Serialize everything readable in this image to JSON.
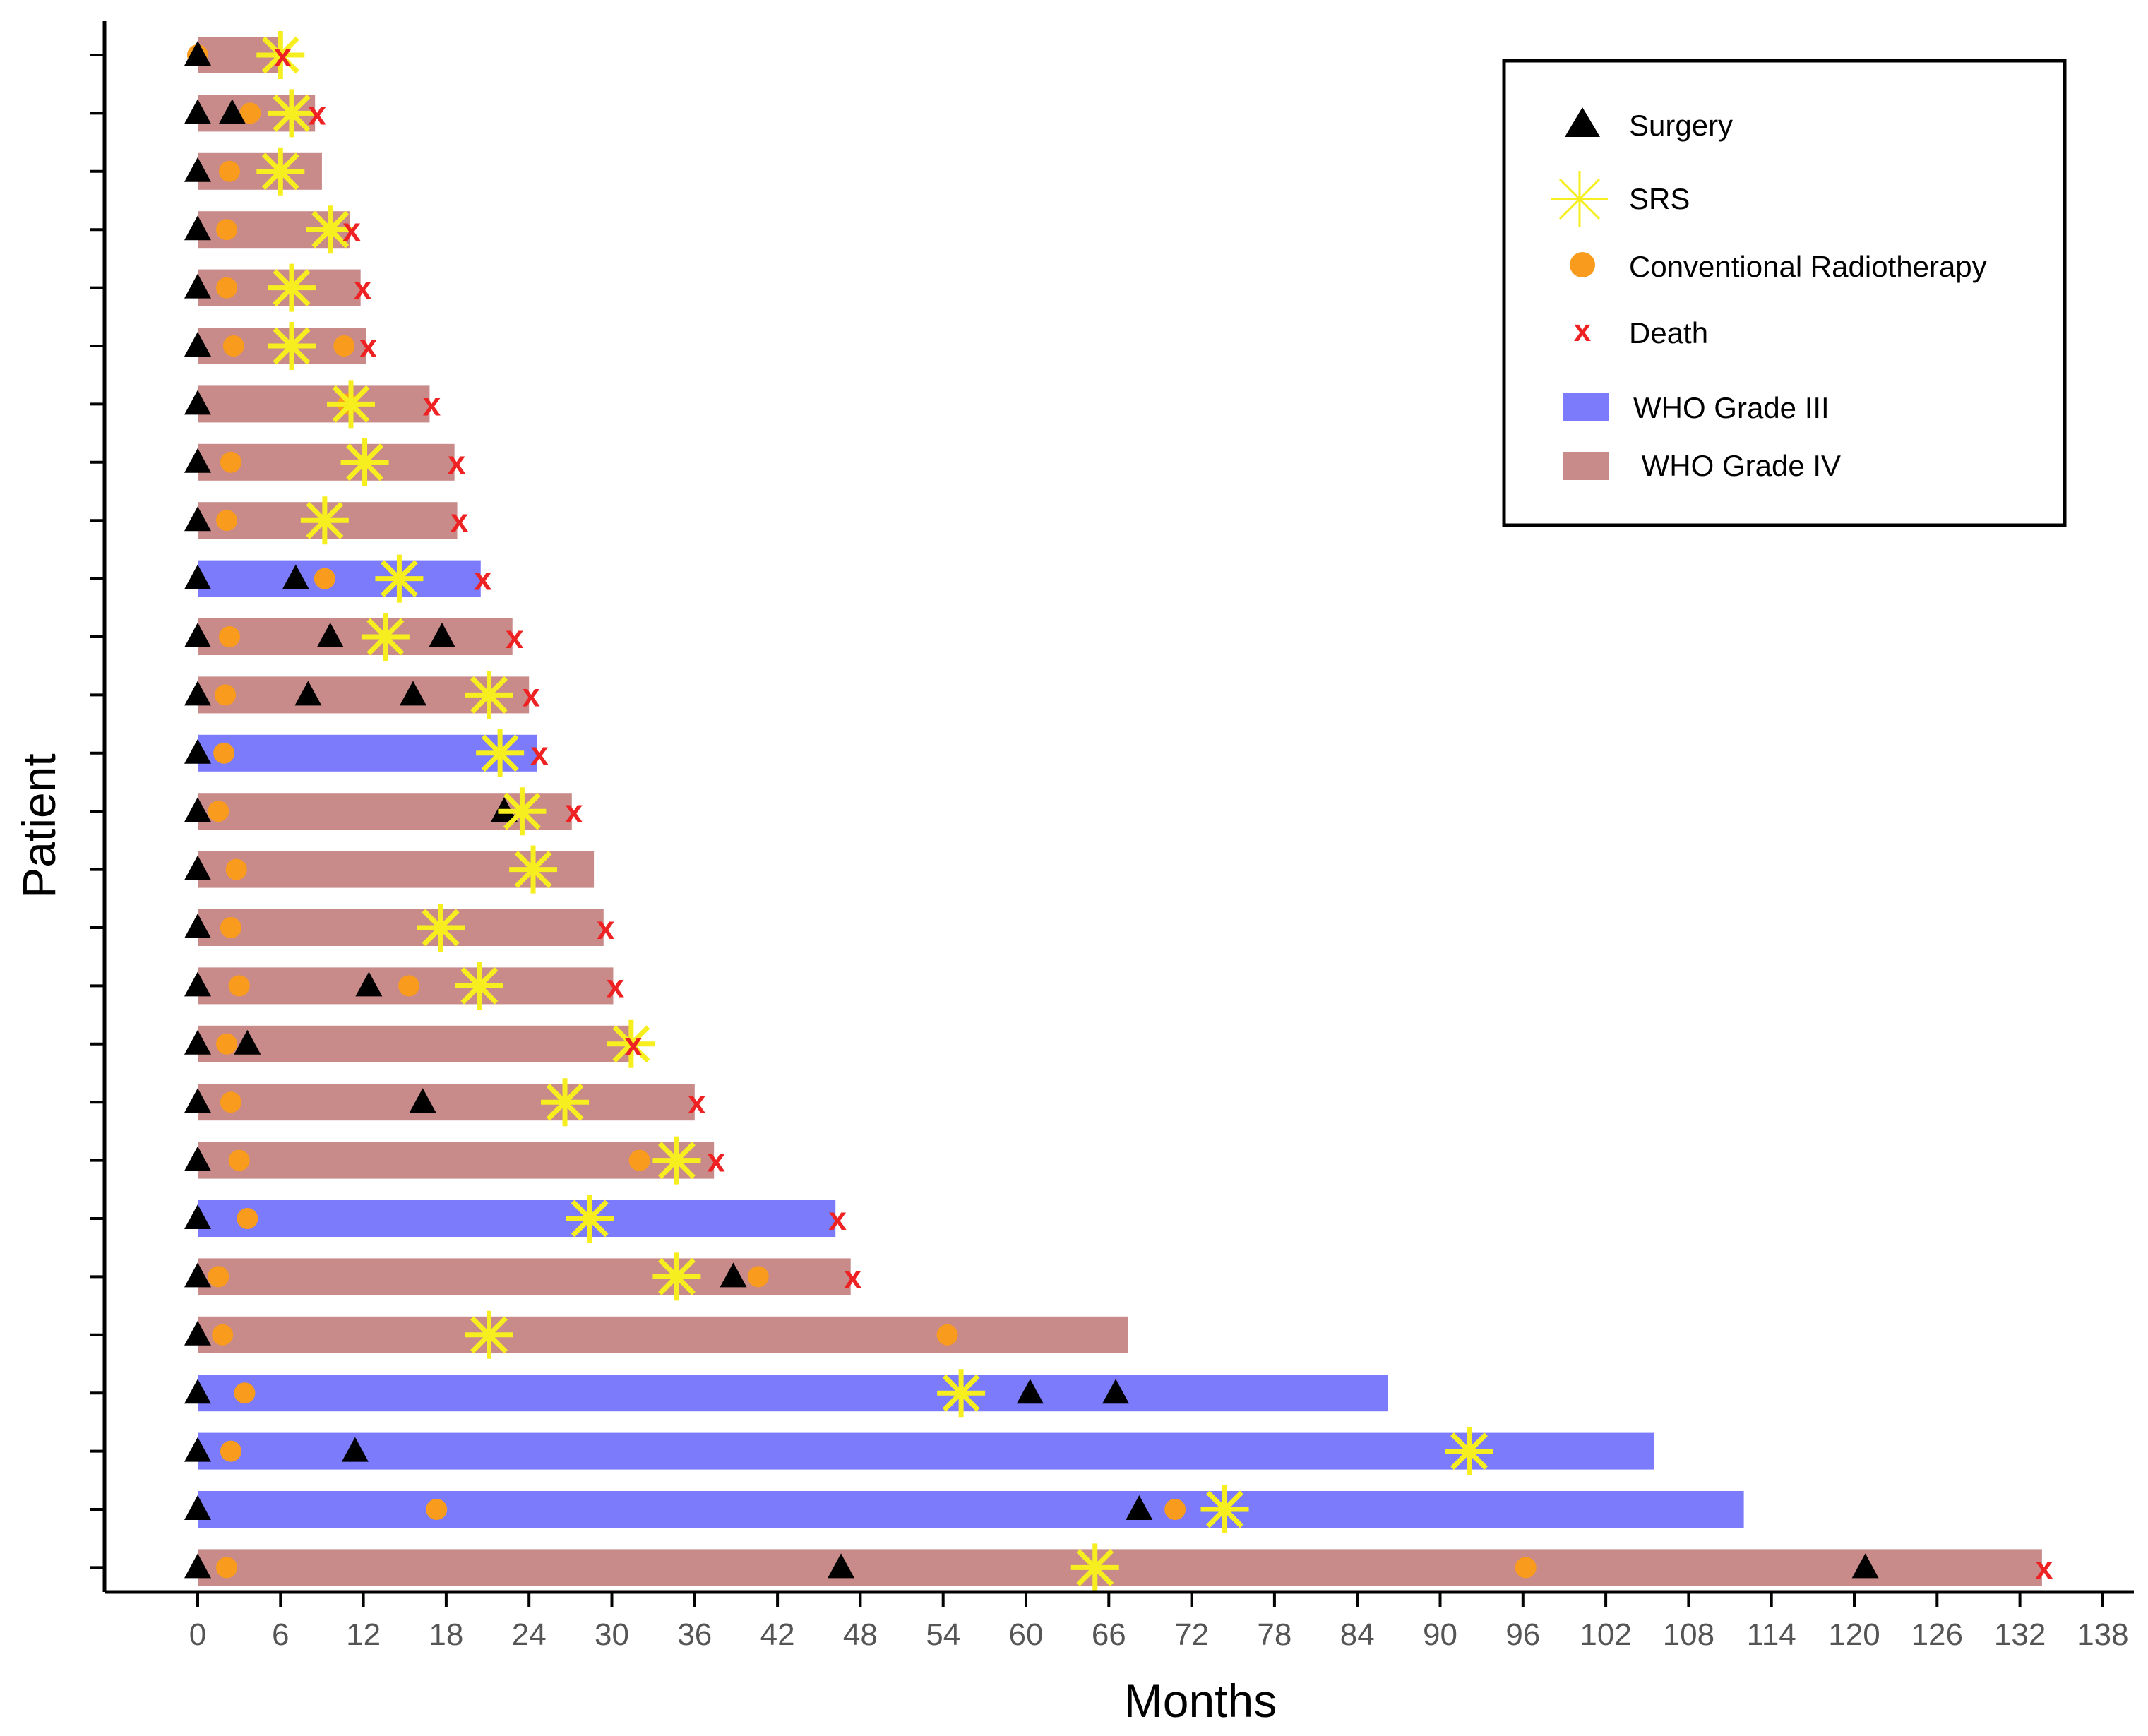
{
  "chart_data": {
    "type": "swimmer",
    "xlabel": "Months",
    "ylabel": "Patient",
    "xlim": [
      0,
      138
    ],
    "xticks": [
      0,
      6,
      12,
      18,
      24,
      30,
      36,
      42,
      48,
      54,
      60,
      66,
      72,
      78,
      84,
      90,
      96,
      102,
      108,
      114,
      120,
      126,
      132,
      138
    ],
    "grid": false,
    "legend_position": "top-right",
    "legend": [
      {
        "key": "surgery",
        "label": "Surgery"
      },
      {
        "key": "srs",
        "label": "SRS"
      },
      {
        "key": "radiotherapy",
        "label": "Conventional Radiotherapy"
      },
      {
        "key": "death",
        "label": "Death"
      },
      {
        "key": "grade3",
        "label": "WHO Grade III"
      },
      {
        "key": "grade4",
        "label": " WHO Grade IV"
      }
    ],
    "colors": {
      "grade3": "#7b7bfc",
      "grade4": "#c98a8a",
      "surgery": "#000000",
      "srs": "#f7ee1f",
      "radiotherapy": "#f99b1c",
      "death": "#ee2222"
    },
    "patients": [
      {
        "grade": "IV",
        "duration": 6,
        "surgery": [
          0
        ],
        "srs": [
          6
        ],
        "radiotherapy": [
          0
        ],
        "death": 6
      },
      {
        "grade": "IV",
        "duration": 8.5,
        "surgery": [
          0,
          2.5
        ],
        "srs": [
          6.8
        ],
        "radiotherapy": [
          3.8
        ],
        "death": 8.5
      },
      {
        "grade": "IV",
        "duration": 9,
        "surgery": [
          0
        ],
        "srs": [
          6
        ],
        "radiotherapy": [
          2.3
        ],
        "death": null
      },
      {
        "grade": "IV",
        "duration": 11,
        "surgery": [
          0
        ],
        "srs": [
          9.6
        ],
        "radiotherapy": [
          2.1
        ],
        "death": 11
      },
      {
        "grade": "IV",
        "duration": 11.8,
        "surgery": [
          0
        ],
        "srs": [
          6.8
        ],
        "radiotherapy": [
          2.1
        ],
        "death": 11.8
      },
      {
        "grade": "IV",
        "duration": 12.2,
        "surgery": [
          0
        ],
        "srs": [
          6.8
        ],
        "radiotherapy": [
          2.6,
          10.6
        ],
        "death": 12.2
      },
      {
        "grade": "IV",
        "duration": 16.8,
        "surgery": [
          0
        ],
        "srs": [
          11.1
        ],
        "radiotherapy": [
          10.9
        ],
        "death": 16.8
      },
      {
        "grade": "IV",
        "duration": 18.6,
        "surgery": [
          0
        ],
        "srs": [
          12.1
        ],
        "radiotherapy": [
          2.4
        ],
        "death": 18.6
      },
      {
        "grade": "IV",
        "duration": 18.8,
        "surgery": [
          0
        ],
        "srs": [
          9.2
        ],
        "radiotherapy": [
          2.1
        ],
        "death": 18.8
      },
      {
        "grade": "III",
        "duration": 20.5,
        "surgery": [
          0,
          7.1
        ],
        "srs": [
          14.6
        ],
        "radiotherapy": [
          9.2
        ],
        "death": 20.5
      },
      {
        "grade": "IV",
        "duration": 22.8,
        "surgery": [
          0,
          9.6,
          17.7
        ],
        "srs": [
          13.6
        ],
        "radiotherapy": [
          2.3
        ],
        "death": 22.8
      },
      {
        "grade": "IV",
        "duration": 24,
        "surgery": [
          0,
          8,
          15.6
        ],
        "srs": [
          21.1
        ],
        "radiotherapy": [
          2
        ],
        "death": 24
      },
      {
        "grade": "III",
        "duration": 24.6,
        "surgery": [
          0
        ],
        "srs": [
          21.9
        ],
        "radiotherapy": [
          1.9
        ],
        "death": 24.6
      },
      {
        "grade": "IV",
        "duration": 27.1,
        "surgery": [
          0,
          22.2
        ],
        "srs": [
          23.5
        ],
        "radiotherapy": [
          1.5
        ],
        "death": 27.1
      },
      {
        "grade": "IV",
        "duration": 28.7,
        "surgery": [
          0
        ],
        "srs": [
          24.3
        ],
        "radiotherapy": [
          2.8
        ],
        "death": null
      },
      {
        "grade": "IV",
        "duration": 29.4,
        "surgery": [
          0
        ],
        "srs": [
          17.6
        ],
        "radiotherapy": [
          2.4
        ],
        "death": 29.4
      },
      {
        "grade": "IV",
        "duration": 30.1,
        "surgery": [
          0,
          12.4
        ],
        "srs": [
          20.4
        ],
        "radiotherapy": [
          3,
          15.3
        ],
        "death": 30.1
      },
      {
        "grade": "IV",
        "duration": 31.4,
        "surgery": [
          0,
          3.6
        ],
        "srs": [
          31.4
        ],
        "radiotherapy": [
          2.1
        ],
        "death": 31.4
      },
      {
        "grade": "IV",
        "duration": 36,
        "surgery": [
          0,
          16.3
        ],
        "srs": [
          26.6
        ],
        "radiotherapy": [
          2.4
        ],
        "death": 36
      },
      {
        "grade": "IV",
        "duration": 37.4,
        "surgery": [
          0
        ],
        "srs": [
          34.7
        ],
        "radiotherapy": [
          3,
          32
        ],
        "death": 37.4
      },
      {
        "grade": "III",
        "duration": 46.2,
        "surgery": [
          0
        ],
        "srs": [
          28.4
        ],
        "radiotherapy": [
          3.6
        ],
        "death": 46.2
      },
      {
        "grade": "IV",
        "duration": 47.3,
        "surgery": [
          0,
          38.8
        ],
        "srs": [
          34.7
        ],
        "radiotherapy": [
          1.5,
          40.6
        ],
        "death": 47.3
      },
      {
        "grade": "IV",
        "duration": 67.4,
        "surgery": [
          0
        ],
        "srs": [
          21.1
        ],
        "radiotherapy": [
          1.8,
          54.3
        ],
        "death": null
      },
      {
        "grade": "III",
        "duration": 86.2,
        "surgery": [
          0,
          60.3,
          66.5
        ],
        "srs": [
          55.3
        ],
        "radiotherapy": [
          3.4
        ],
        "death": null
      },
      {
        "grade": "III",
        "duration": 105.5,
        "surgery": [
          0,
          11.4
        ],
        "srs": [
          92.1
        ],
        "radiotherapy": [
          2.4
        ],
        "death": null
      },
      {
        "grade": "III",
        "duration": 112,
        "surgery": [
          0,
          68.2
        ],
        "srs": [
          74.4
        ],
        "radiotherapy": [
          17.3,
          70.8
        ],
        "death": null
      },
      {
        "grade": "IV",
        "duration": 133.6,
        "surgery": [
          0,
          46.6,
          120.8
        ],
        "srs": [
          65
        ],
        "radiotherapy": [
          2.1,
          96.2
        ],
        "death": 133.6
      }
    ]
  }
}
